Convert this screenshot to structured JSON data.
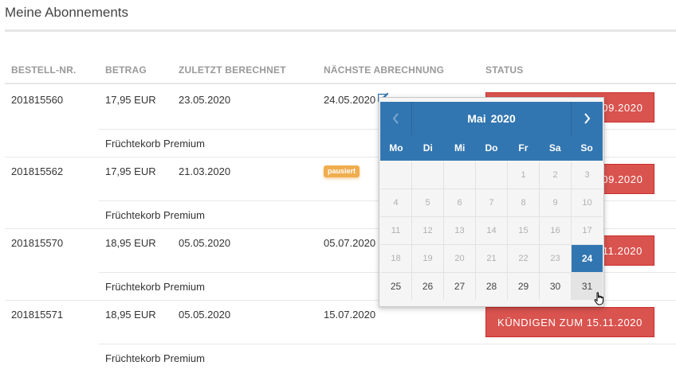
{
  "page": {
    "title": "Meine Abonnements"
  },
  "table": {
    "headers": [
      "BESTELL-NR.",
      "BETRAG",
      "ZULETZT BERECHNET",
      "NÄCHSTE ABRECHNUNG",
      "STATUS"
    ],
    "rows": [
      {
        "order": "201815560",
        "amount": "17,95 EUR",
        "last": "23.05.2020",
        "next": "24.05.2020",
        "badge": "",
        "cancel": "KÜNDIGEN ZUM 15.09.2020",
        "product": "Früchtekorb Premium"
      },
      {
        "order": "201815562",
        "amount": "17,95 EUR",
        "last": "21.03.2020",
        "next": "",
        "badge": "pausiert",
        "cancel": "KÜNDIGEN ZUM 15.09.2020",
        "product": "Früchtekorb Premium"
      },
      {
        "order": "201815570",
        "amount": "18,95 EUR",
        "last": "05.05.2020",
        "next": "05.07.2020",
        "badge": "",
        "cancel": "KÜNDIGEN ZUM 15.11.2020",
        "product": "Früchtekorb Premium"
      },
      {
        "order": "201815571",
        "amount": "18,95 EUR",
        "last": "05.05.2020",
        "next": "15.07.2020",
        "badge": "",
        "cancel": "KÜNDIGEN ZUM 15.11.2020",
        "product": "Früchtekorb Premium"
      }
    ]
  },
  "datepicker": {
    "month": "Mai",
    "year": "2020",
    "prev_icon": "chevron-left-icon",
    "next_icon": "chevron-right-icon",
    "weekdays": [
      "Mo",
      "Di",
      "Mi",
      "Do",
      "Fr",
      "Sa",
      "So"
    ],
    "days": [
      "",
      "",
      "",
      "",
      "1",
      "2",
      "3",
      "4",
      "5",
      "6",
      "7",
      "8",
      "9",
      "10",
      "11",
      "12",
      "13",
      "14",
      "15",
      "16",
      "17",
      "18",
      "19",
      "20",
      "21",
      "22",
      "23",
      "24",
      "25",
      "26",
      "27",
      "28",
      "29",
      "30",
      "31"
    ],
    "first_enabled": "24",
    "selected": "24",
    "hovered": "31"
  },
  "colors": {
    "accent": "#3276b1",
    "danger": "#d9534f",
    "warning": "#f0ad4e"
  }
}
